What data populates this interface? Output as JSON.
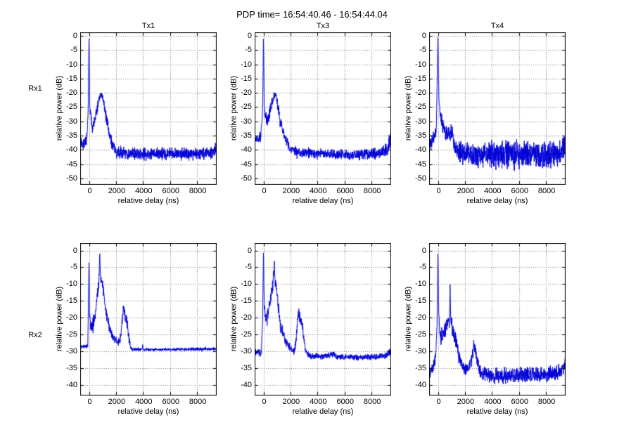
{
  "figure": {
    "title": "PDP time= 16:54:40.46 - 16:54:44.04",
    "background": "#ffffff"
  },
  "axis_labels": {
    "x": "relative delay (ns)",
    "y": "relative power (dB)"
  },
  "row_labels": [
    "Rx1",
    "Rx2"
  ],
  "col_labels": [
    "Tx1",
    "Tx3",
    "Tx4"
  ],
  "colors": {
    "line": "#0000d6",
    "grid": "#777777",
    "axis": "#000000",
    "text": "#000000"
  },
  "chart_data": [
    {
      "type": "line",
      "row": "Rx1",
      "col": "Tx1",
      "title": "Tx1",
      "xlabel": "relative delay (ns)",
      "ylabel": "relative power (dB)",
      "xlim": [
        -600,
        9400
      ],
      "ylim": [
        1,
        -52
      ],
      "xticks": [
        0,
        2000,
        4000,
        6000,
        8000
      ],
      "yticks": [
        0,
        -5,
        -10,
        -15,
        -20,
        -25,
        -30,
        -35,
        -40,
        -45,
        -50
      ],
      "grid": true,
      "peak_dB": 0,
      "second_peak": {
        "x": 900,
        "dB": -20.5
      },
      "noise_floor_dB": -41.3,
      "profile": [
        [
          -600,
          -38,
          2
        ],
        [
          -150,
          -36.5,
          2
        ],
        [
          -60,
          -26,
          1
        ],
        [
          0,
          0,
          0.2
        ],
        [
          60,
          -25,
          1
        ],
        [
          130,
          -28,
          1.5
        ],
        [
          250,
          -32.5,
          1.5
        ],
        [
          400,
          -30,
          2
        ],
        [
          550,
          -27,
          2
        ],
        [
          650,
          -24.5,
          1.5
        ],
        [
          750,
          -22,
          1.2
        ],
        [
          850,
          -21,
          0.8
        ],
        [
          950,
          -20.8,
          0.8
        ],
        [
          1050,
          -22,
          1.2
        ],
        [
          1150,
          -25,
          1.5
        ],
        [
          1300,
          -29,
          2
        ],
        [
          1450,
          -33,
          2
        ],
        [
          1650,
          -37,
          2
        ],
        [
          1900,
          -40,
          1.8
        ],
        [
          2200,
          -41,
          1.8
        ],
        [
          3500,
          -41.5,
          1.8
        ],
        [
          5500,
          -41.3,
          1.8
        ],
        [
          7500,
          -41.2,
          1.9
        ],
        [
          9000,
          -41,
          2
        ],
        [
          9400,
          -39.5,
          2.2
        ]
      ]
    },
    {
      "type": "line",
      "row": "Rx1",
      "col": "Tx3",
      "title": "Tx3",
      "xlabel": "relative delay (ns)",
      "ylabel": "relative power (dB)",
      "xlim": [
        -600,
        9400
      ],
      "ylim": [
        1,
        -52
      ],
      "xticks": [
        0,
        2000,
        4000,
        6000,
        8000
      ],
      "yticks": [
        0,
        -5,
        -10,
        -15,
        -20,
        -25,
        -30,
        -35,
        -40,
        -45,
        -50
      ],
      "grid": true,
      "peak_dB": 0,
      "second_peak": {
        "x": 820,
        "dB": -20.5
      },
      "noise_floor_dB": -41.5,
      "profile": [
        [
          -600,
          -36,
          1.5
        ],
        [
          -200,
          -35.5,
          1.5
        ],
        [
          -60,
          -26,
          1
        ],
        [
          0,
          0,
          0.2
        ],
        [
          60,
          -25,
          1
        ],
        [
          150,
          -28.5,
          1.5
        ],
        [
          280,
          -30,
          1.8
        ],
        [
          420,
          -28,
          2
        ],
        [
          560,
          -25,
          2
        ],
        [
          700,
          -22,
          1.5
        ],
        [
          820,
          -20.8,
          0.8
        ],
        [
          950,
          -21.5,
          1.2
        ],
        [
          1100,
          -26,
          2
        ],
        [
          1300,
          -31,
          2
        ],
        [
          1500,
          -34.5,
          1.8
        ],
        [
          1750,
          -37.5,
          1.6
        ],
        [
          2000,
          -39.5,
          1.5
        ],
        [
          2500,
          -41,
          1.6
        ],
        [
          4500,
          -41.5,
          1.5
        ],
        [
          6500,
          -41.8,
          1.5
        ],
        [
          8500,
          -41.3,
          1.7
        ],
        [
          9200,
          -39.5,
          2
        ],
        [
          9400,
          -35.5,
          2.5
        ]
      ]
    },
    {
      "type": "line",
      "row": "Rx1",
      "col": "Tx4",
      "title": "Tx4",
      "xlabel": "relative delay (ns)",
      "ylabel": "relative power (dB)",
      "xlim": [
        -600,
        9400
      ],
      "ylim": [
        1,
        -52
      ],
      "xticks": [
        0,
        2000,
        4000,
        6000,
        8000
      ],
      "yticks": [
        0,
        -5,
        -10,
        -15,
        -20,
        -25,
        -30,
        -35,
        -40,
        -45,
        -50
      ],
      "grid": true,
      "peak_dB": 0,
      "second_peak": {
        "x": 800,
        "dB": -33.5
      },
      "noise_floor_dB": -41.8,
      "profile": [
        [
          -600,
          -38,
          2.5
        ],
        [
          -300,
          -35.5,
          2
        ],
        [
          -120,
          -33,
          1.5
        ],
        [
          0,
          0,
          0.2
        ],
        [
          80,
          -24,
          1.5
        ],
        [
          180,
          -28,
          2
        ],
        [
          350,
          -31,
          2.5
        ],
        [
          550,
          -34,
          2.5
        ],
        [
          750,
          -34.5,
          2.5
        ],
        [
          950,
          -33.5,
          2.5
        ],
        [
          1100,
          -35.5,
          2.5
        ],
        [
          1300,
          -39,
          3
        ],
        [
          1600,
          -41,
          3.5
        ],
        [
          2200,
          -41.5,
          3.8
        ],
        [
          3500,
          -42,
          4
        ],
        [
          5000,
          -41.8,
          4.2
        ],
        [
          6500,
          -41.5,
          4
        ],
        [
          8000,
          -42,
          4.2
        ],
        [
          9100,
          -41,
          3.8
        ],
        [
          9400,
          -37.5,
          3
        ]
      ]
    },
    {
      "type": "line",
      "row": "Rx2",
      "col": "Tx1",
      "title": "",
      "xlabel": "relative delay (ns)",
      "ylabel": "relative power (dB)",
      "xlim": [
        -600,
        9400
      ],
      "ylim": [
        2,
        -43
      ],
      "xticks": [
        0,
        2000,
        4000,
        6000,
        8000
      ],
      "yticks": [
        0,
        -5,
        -10,
        -15,
        -20,
        -25,
        -30,
        -35,
        -40
      ],
      "grid": true,
      "peak_dB": 0,
      "second_peak": {
        "x": 2550,
        "dB": -16
      },
      "noise_floor_dB": -29.5,
      "profile": [
        [
          -600,
          -28.7,
          0.6
        ],
        [
          -90,
          -28.5,
          0.6
        ],
        [
          -45,
          -16,
          0.5
        ],
        [
          0,
          -3,
          0.3
        ],
        [
          45,
          -19,
          1
        ],
        [
          110,
          -22,
          2
        ],
        [
          230,
          -22.5,
          2.5
        ],
        [
          330,
          -21.5,
          2.5
        ],
        [
          430,
          -20,
          2
        ],
        [
          510,
          -17.5,
          1.8
        ],
        [
          600,
          -13.5,
          1.5
        ],
        [
          690,
          -11,
          1.5
        ],
        [
          745,
          -8,
          1.2
        ],
        [
          800,
          -0.5,
          0.5
        ],
        [
          835,
          -6.5,
          1
        ],
        [
          880,
          -9,
          1
        ],
        [
          950,
          -9,
          1
        ],
        [
          1020,
          -11,
          1.5
        ],
        [
          1110,
          -13.5,
          1.5
        ],
        [
          1210,
          -16.5,
          1.8
        ],
        [
          1310,
          -19.5,
          1.8
        ],
        [
          1420,
          -21,
          1.5
        ],
        [
          1520,
          -23.5,
          1.2
        ],
        [
          1680,
          -25,
          1
        ],
        [
          1850,
          -26.3,
          0.9
        ],
        [
          2000,
          -26.5,
          0.9
        ],
        [
          2120,
          -27.5,
          0.9
        ],
        [
          2260,
          -27,
          1
        ],
        [
          2370,
          -25,
          1.2
        ],
        [
          2460,
          -21.5,
          1.5
        ],
        [
          2550,
          -16.8,
          1.2
        ],
        [
          2630,
          -18,
          1.5
        ],
        [
          2700,
          -20.5,
          1.5
        ],
        [
          2770,
          -19.8,
          1.5
        ],
        [
          2860,
          -22.5,
          1.5
        ],
        [
          2960,
          -26,
          1.2
        ],
        [
          3060,
          -28.5,
          0.7
        ],
        [
          3170,
          -29.4,
          0.4
        ],
        [
          3940,
          -29.5,
          0.4
        ],
        [
          3975,
          -28,
          0.25
        ],
        [
          4010,
          -29.5,
          0.4
        ],
        [
          6000,
          -29.5,
          0.4
        ],
        [
          8000,
          -29.4,
          0.45
        ],
        [
          9400,
          -29.3,
          0.5
        ]
      ]
    },
    {
      "type": "line",
      "row": "Rx2",
      "col": "Tx3",
      "title": "",
      "xlabel": "relative delay (ns)",
      "ylabel": "relative power (dB)",
      "xlim": [
        -600,
        9400
      ],
      "ylim": [
        2,
        -43
      ],
      "xticks": [
        0,
        2000,
        4000,
        6000,
        8000
      ],
      "yticks": [
        0,
        -5,
        -10,
        -15,
        -20,
        -25,
        -30,
        -35,
        -40
      ],
      "grid": true,
      "peak_dB": 0,
      "second_peak": {
        "x": 805,
        "dB": -3
      },
      "noise_floor_dB": -31.6,
      "profile": [
        [
          -600,
          -30.2,
          1
        ],
        [
          -160,
          -30.5,
          1
        ],
        [
          -60,
          -19,
          1
        ],
        [
          0,
          -0.3,
          0.3
        ],
        [
          55,
          -16,
          1
        ],
        [
          130,
          -19.5,
          1.2
        ],
        [
          260,
          -21,
          1.8
        ],
        [
          400,
          -17,
          1.8
        ],
        [
          510,
          -14.5,
          1.6
        ],
        [
          610,
          -12,
          1.6
        ],
        [
          700,
          -10.5,
          1.6
        ],
        [
          775,
          -6,
          1.5
        ],
        [
          805,
          -3,
          0.8
        ],
        [
          860,
          -9.5,
          1.2
        ],
        [
          950,
          -10.5,
          1.2
        ],
        [
          1060,
          -15,
          2
        ],
        [
          1160,
          -19,
          2
        ],
        [
          1270,
          -22.5,
          1.8
        ],
        [
          1400,
          -23.5,
          2
        ],
        [
          1560,
          -26,
          1.2
        ],
        [
          1720,
          -27.5,
          1.2
        ],
        [
          1920,
          -28.5,
          1
        ],
        [
          2120,
          -29.5,
          0.9
        ],
        [
          2260,
          -30,
          0.9
        ],
        [
          2360,
          -28.5,
          1
        ],
        [
          2460,
          -24.5,
          1.5
        ],
        [
          2545,
          -19.8,
          1.5
        ],
        [
          2615,
          -18.2,
          1.2
        ],
        [
          2700,
          -20,
          1.5
        ],
        [
          2800,
          -20.8,
          1.5
        ],
        [
          2900,
          -23,
          1.5
        ],
        [
          3000,
          -26.5,
          1.5
        ],
        [
          3110,
          -29.5,
          1
        ],
        [
          3260,
          -30.8,
          0.8
        ],
        [
          3500,
          -31.5,
          0.7
        ],
        [
          4800,
          -31.5,
          0.8
        ],
        [
          5150,
          -30.8,
          0.9
        ],
        [
          5400,
          -31.6,
          0.7
        ],
        [
          7000,
          -31.9,
          0.7
        ],
        [
          8500,
          -31.6,
          0.7
        ],
        [
          9200,
          -31,
          0.9
        ],
        [
          9400,
          -30,
          1
        ]
      ]
    },
    {
      "type": "line",
      "row": "Rx2",
      "col": "Tx4",
      "title": "",
      "xlabel": "relative delay (ns)",
      "ylabel": "relative power (dB)",
      "xlim": [
        -600,
        9400
      ],
      "ylim": [
        2,
        -43
      ],
      "xticks": [
        0,
        2000,
        4000,
        6000,
        8000
      ],
      "yticks": [
        0,
        -5,
        -10,
        -15,
        -20,
        -25,
        -30,
        -35,
        -40
      ],
      "grid": true,
      "peak_dB": 0,
      "second_peak": {
        "x": 900,
        "dB": -10
      },
      "noise_floor_dB": -37,
      "profile": [
        [
          -600,
          -36.5,
          1.5
        ],
        [
          -320,
          -34,
          1.6
        ],
        [
          -160,
          -31.5,
          1.5
        ],
        [
          -60,
          -21,
          1
        ],
        [
          0,
          -0.3,
          0.3
        ],
        [
          60,
          -19,
          1.5
        ],
        [
          160,
          -24.5,
          1.8
        ],
        [
          270,
          -26,
          2.2
        ],
        [
          380,
          -25.5,
          2.2
        ],
        [
          480,
          -24,
          2.2
        ],
        [
          580,
          -23,
          2.2
        ],
        [
          680,
          -21.5,
          2.2
        ],
        [
          780,
          -21,
          2.2
        ],
        [
          860,
          -20.5,
          2
        ],
        [
          900,
          -10.3,
          0.8
        ],
        [
          945,
          -19.5,
          1.5
        ],
        [
          1010,
          -21.5,
          2
        ],
        [
          1110,
          -24,
          2.2
        ],
        [
          1260,
          -26.5,
          2.2
        ],
        [
          1410,
          -29,
          2
        ],
        [
          1560,
          -31.5,
          1.8
        ],
        [
          1710,
          -33.5,
          1.6
        ],
        [
          1870,
          -35,
          1.4
        ],
        [
          2070,
          -35.6,
          1.4
        ],
        [
          2270,
          -35.4,
          1.4
        ],
        [
          2420,
          -34,
          1.6
        ],
        [
          2560,
          -31.5,
          1.6
        ],
        [
          2650,
          -28,
          1.8
        ],
        [
          2730,
          -30,
          1.6
        ],
        [
          2820,
          -31.5,
          1.6
        ],
        [
          2960,
          -33.5,
          1.6
        ],
        [
          3120,
          -36,
          1.9
        ],
        [
          3350,
          -37,
          1.9
        ],
        [
          4500,
          -37.2,
          2
        ],
        [
          6000,
          -36.9,
          2
        ],
        [
          7500,
          -37.1,
          2
        ],
        [
          9100,
          -36.2,
          1.9
        ],
        [
          9400,
          -34,
          1.6
        ]
      ]
    }
  ]
}
